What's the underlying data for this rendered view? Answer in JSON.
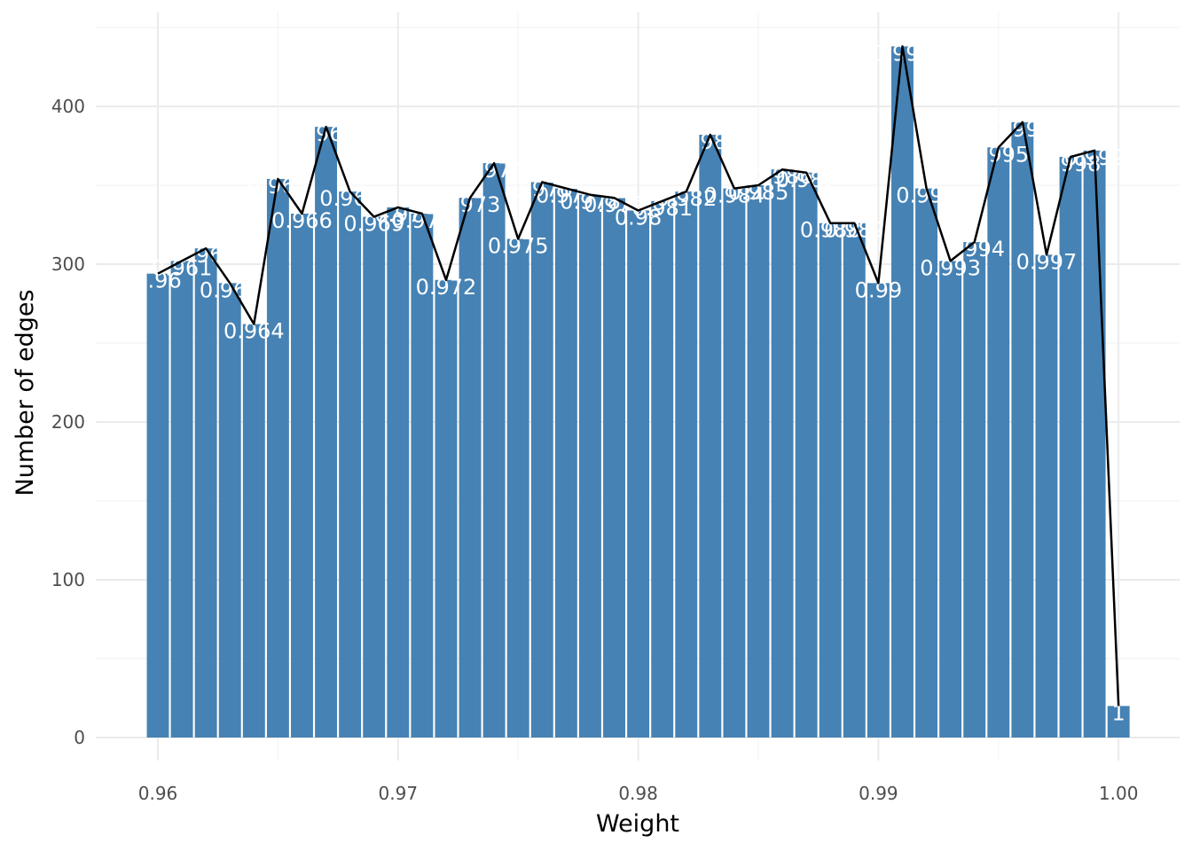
{
  "chart_data": {
    "type": "bar",
    "title": "",
    "xlabel": "Weight",
    "ylabel": "Number of edges",
    "xlim": [
      0.9555,
      1.0025
    ],
    "ylim": [
      0,
      452
    ],
    "x_ticks": [
      0.96,
      0.97,
      0.98,
      0.99,
      1.0
    ],
    "x_tick_labels": [
      "0.96",
      "0.97",
      "0.98",
      "0.99",
      "1.00"
    ],
    "y_ticks": [
      0,
      100,
      200,
      300,
      400
    ],
    "y_tick_labels": [
      "0",
      "100",
      "200",
      "300",
      "400"
    ],
    "grid": true,
    "bar_width": 0.00092,
    "bar_color": "#4682b4",
    "line_color": "#000000",
    "label_color": "#ffffff",
    "x": [
      0.96,
      0.961,
      0.962,
      0.963,
      0.964,
      0.965,
      0.966,
      0.967,
      0.968,
      0.969,
      0.97,
      0.971,
      0.972,
      0.973,
      0.974,
      0.975,
      0.976,
      0.977,
      0.978,
      0.979,
      0.98,
      0.981,
      0.982,
      0.983,
      0.984,
      0.985,
      0.986,
      0.987,
      0.988,
      0.989,
      0.99,
      0.991,
      0.992,
      0.993,
      0.994,
      0.995,
      0.996,
      0.997,
      0.998,
      0.999,
      1.0
    ],
    "values": [
      294,
      302,
      310,
      288,
      262,
      354,
      332,
      387,
      346,
      330,
      336,
      332,
      290,
      342,
      364,
      316,
      352,
      348,
      344,
      342,
      334,
      340,
      346,
      382,
      348,
      350,
      360,
      358,
      326,
      326,
      288,
      438,
      348,
      302,
      314,
      374,
      390,
      306,
      368,
      372,
      20
    ],
    "labels": [
      "0.96",
      "0.961",
      "0.962",
      "0.963",
      "0.964",
      "0.965",
      "0.966",
      "0.967",
      "0.968",
      "0.969",
      "0.97",
      "0.971",
      "0.972",
      "0.973",
      "0.974",
      "0.975",
      "0.976",
      "0.977",
      "0.978",
      "0.979",
      "0.98",
      "0.981",
      "0.982",
      "0.983",
      "0.984",
      "0.985",
      "0.986",
      "0.987",
      "0.988",
      "0.989",
      "0.99",
      "0.991",
      "0.992",
      "0.993",
      "0.994",
      "0.995",
      "0.996",
      "0.997",
      "0.998",
      "0.999",
      "1"
    ]
  }
}
